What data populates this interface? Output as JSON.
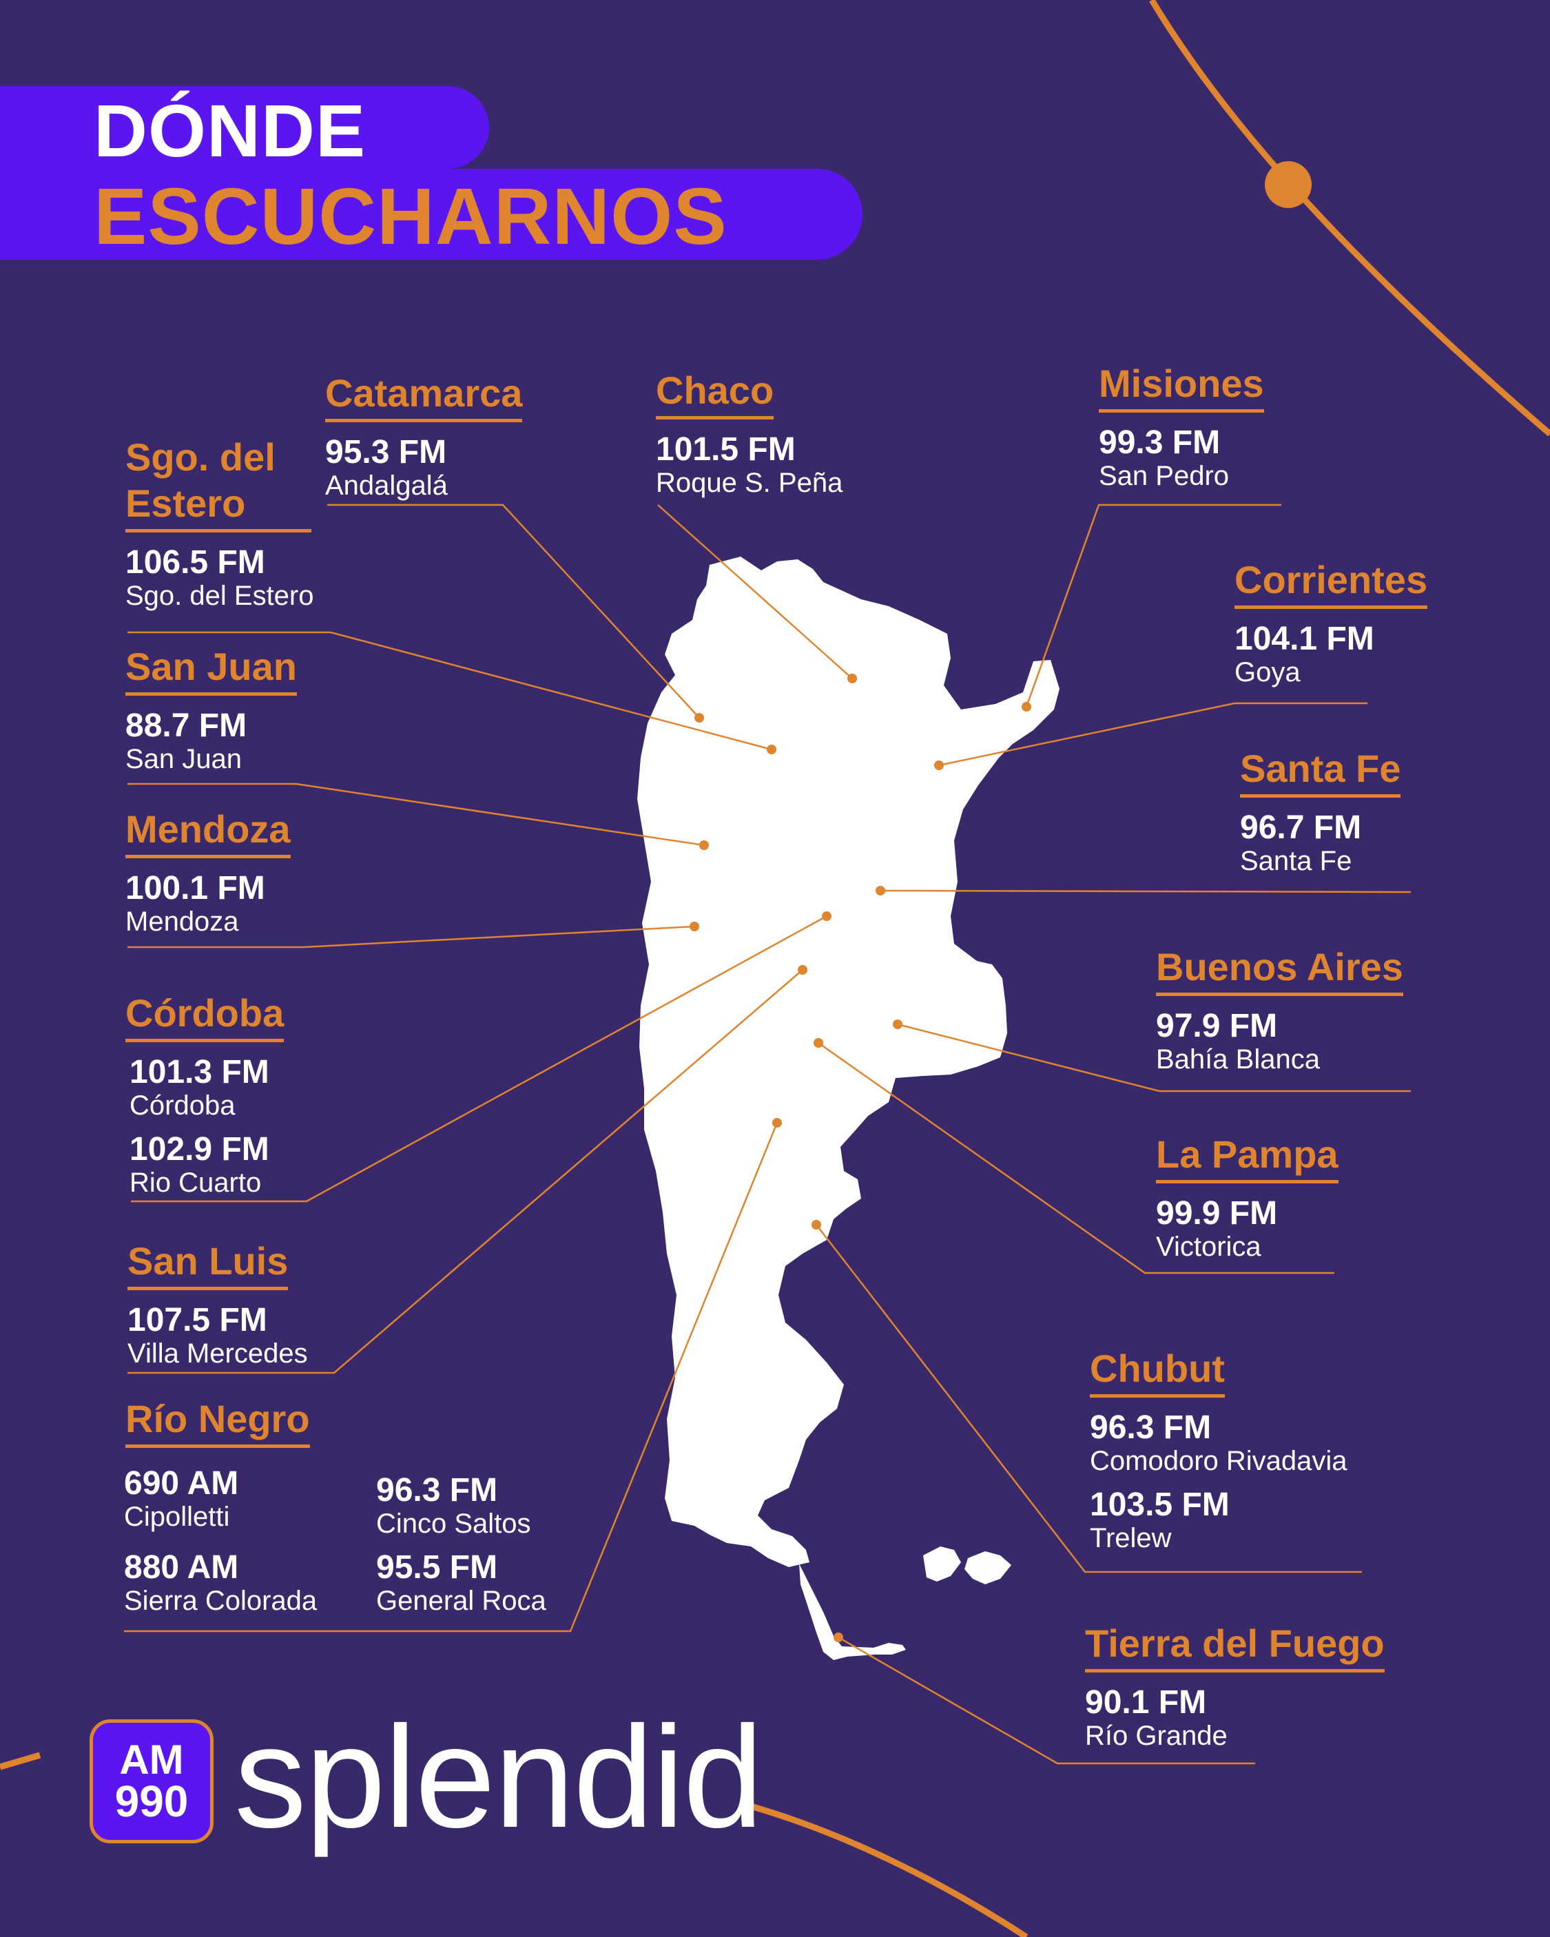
{
  "header": {
    "line1": "DÓNDE",
    "line2": "ESCUCHARNOS"
  },
  "colors": {
    "background": "#39286a",
    "accent": "#e0852f",
    "banner": "#5b16f0",
    "map": "#ffffff"
  },
  "provinces": [
    {
      "key": "catamarca",
      "name": "Catamarca",
      "stations": [
        {
          "freq": "95.3 FM",
          "city": "Andalgalá"
        }
      ]
    },
    {
      "key": "chaco",
      "name": "Chaco",
      "stations": [
        {
          "freq": "101.5 FM",
          "city": "Roque S. Peña"
        }
      ]
    },
    {
      "key": "misiones",
      "name": "Misiones",
      "stations": [
        {
          "freq": "99.3 FM",
          "city": "San Pedro"
        }
      ]
    },
    {
      "key": "sgo",
      "name": "Sgo. del Estero",
      "stations": [
        {
          "freq": "106.5 FM",
          "city": "Sgo. del Estero"
        }
      ]
    },
    {
      "key": "corrientes",
      "name": "Corrientes",
      "stations": [
        {
          "freq": "104.1 FM",
          "city": "Goya"
        }
      ]
    },
    {
      "key": "sanjuan",
      "name": "San Juan",
      "stations": [
        {
          "freq": "88.7 FM",
          "city": "San Juan"
        }
      ]
    },
    {
      "key": "santafe",
      "name": "Santa Fe",
      "stations": [
        {
          "freq": "96.7 FM",
          "city": "Santa Fe"
        }
      ]
    },
    {
      "key": "mendoza",
      "name": "Mendoza",
      "stations": [
        {
          "freq": "100.1 FM",
          "city": "Mendoza"
        }
      ]
    },
    {
      "key": "buenosaires",
      "name": "Buenos Aires",
      "stations": [
        {
          "freq": "97.9 FM",
          "city": "Bahía Blanca"
        }
      ]
    },
    {
      "key": "cordoba",
      "name": "Córdoba",
      "stations": [
        {
          "freq": "101.3 FM",
          "city": "Córdoba"
        },
        {
          "freq": "102.9 FM",
          "city": "Rio Cuarto"
        }
      ]
    },
    {
      "key": "lapampa",
      "name": "La Pampa",
      "stations": [
        {
          "freq": "99.9 FM",
          "city": "Victorica"
        }
      ]
    },
    {
      "key": "sanluis",
      "name": "San Luis",
      "stations": [
        {
          "freq": "107.5 FM",
          "city": "Villa Mercedes"
        }
      ]
    },
    {
      "key": "chubut",
      "name": "Chubut",
      "stations": [
        {
          "freq": "96.3 FM",
          "city": "Comodoro Rivadavia"
        },
        {
          "freq": "103.5 FM",
          "city": "Trelew"
        }
      ]
    },
    {
      "key": "rionegro",
      "name": "Río Negro",
      "stations": [
        {
          "freq": "690 AM",
          "city": "Cipolletti"
        },
        {
          "freq": "880 AM",
          "city": "Sierra Colorada"
        },
        {
          "freq": "96.3 FM",
          "city": "Cinco Saltos"
        },
        {
          "freq": "95.5 FM",
          "city": "General Roca"
        }
      ]
    },
    {
      "key": "tdf",
      "name": "Tierra del Fuego",
      "stations": [
        {
          "freq": "90.1 FM",
          "city": "Río Grande"
        }
      ]
    }
  ],
  "logo": {
    "badge_top": "AM",
    "badge_bottom": "990",
    "wordmark": "splendid"
  }
}
